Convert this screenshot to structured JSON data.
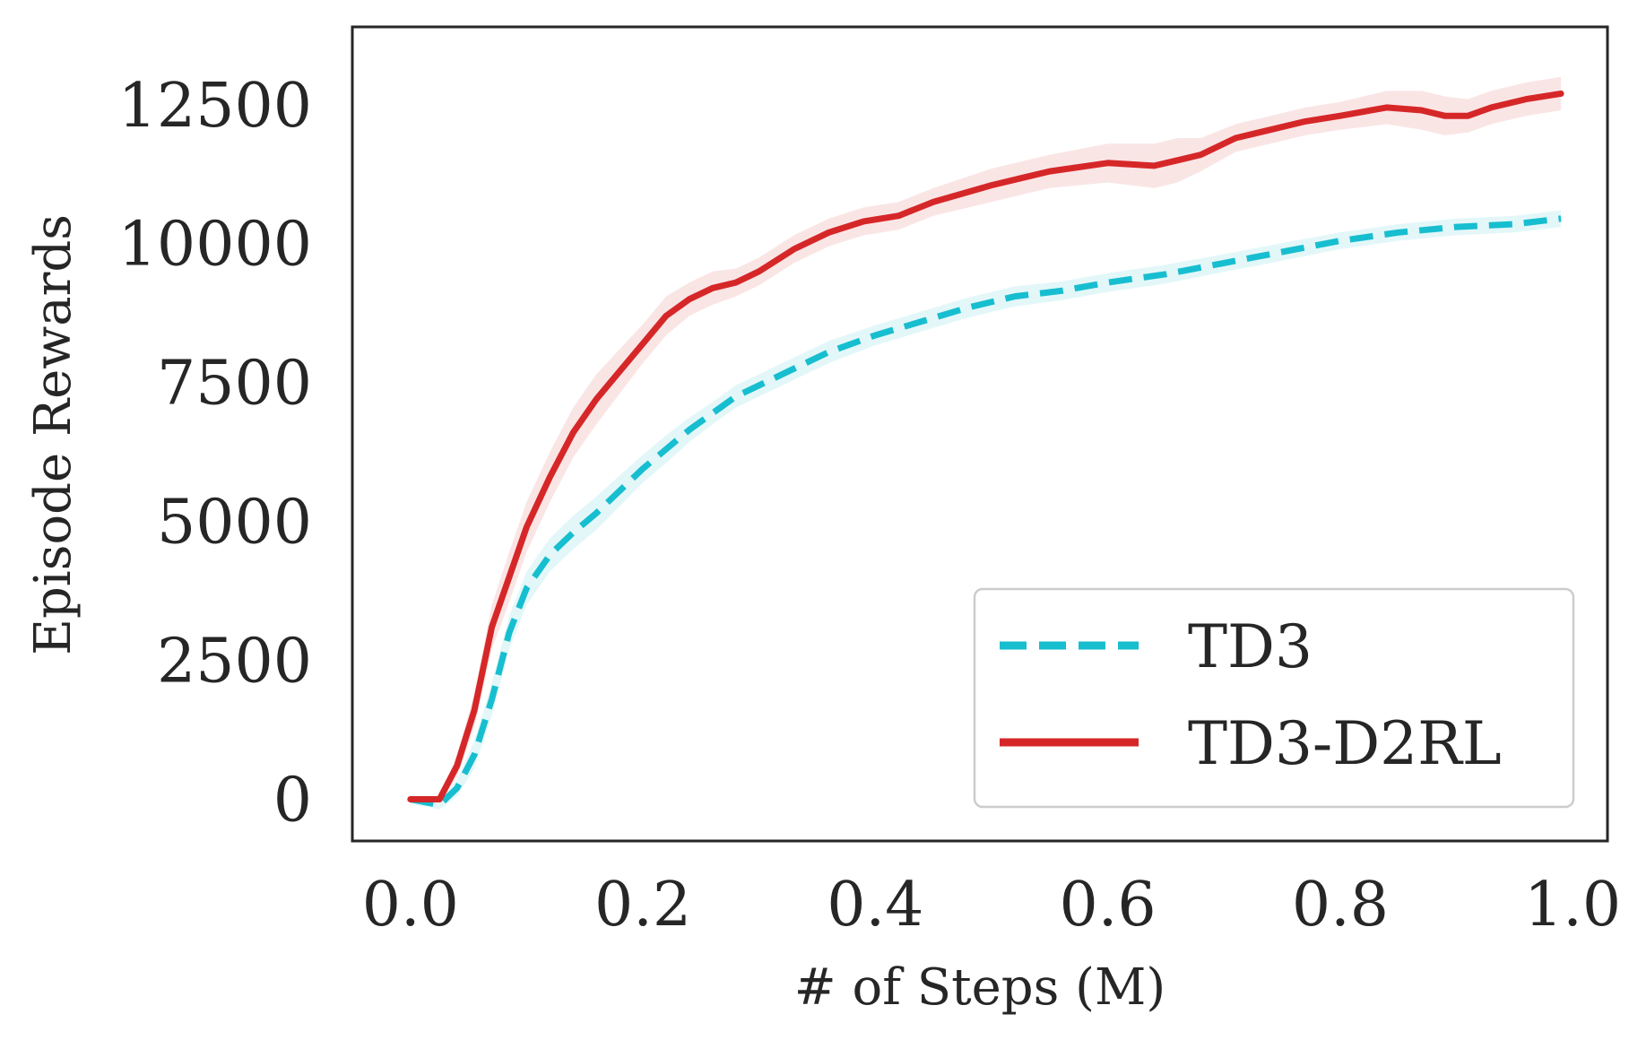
{
  "chart_data": {
    "type": "line",
    "title": "",
    "xlabel": "# of Steps (M)",
    "ylabel": "Episode Rewards",
    "xlim": [
      -0.05,
      1.03
    ],
    "ylim": [
      -750,
      13900
    ],
    "xticks": [
      0.0,
      0.2,
      0.4,
      0.6,
      0.8,
      1.0
    ],
    "xtick_labels": [
      "0.0",
      "0.2",
      "0.4",
      "0.6",
      "0.8",
      "1.0"
    ],
    "yticks": [
      0,
      2500,
      5000,
      7500,
      10000,
      12500
    ],
    "ytick_labels": [
      "0",
      "2500",
      "5000",
      "7500",
      "10000",
      "12500"
    ],
    "grid": false,
    "legend_position": "lower-right",
    "series": [
      {
        "name": "TD3",
        "color": "#17becf",
        "line_style": "dashed",
        "x": [
          0.0,
          0.025,
          0.04,
          0.055,
          0.07,
          0.085,
          0.1,
          0.12,
          0.14,
          0.16,
          0.18,
          0.2,
          0.22,
          0.24,
          0.26,
          0.28,
          0.3,
          0.33,
          0.36,
          0.4,
          0.44,
          0.48,
          0.52,
          0.56,
          0.6,
          0.65,
          0.7,
          0.75,
          0.8,
          0.85,
          0.9,
          0.95,
          0.99
        ],
        "y": [
          0,
          -100,
          200,
          800,
          1800,
          3000,
          3800,
          4400,
          4800,
          5150,
          5550,
          5950,
          6300,
          6650,
          6950,
          7250,
          7450,
          7750,
          8050,
          8350,
          8600,
          8850,
          9050,
          9150,
          9300,
          9450,
          9650,
          9850,
          10050,
          10200,
          10300,
          10350,
          10450
        ],
        "band": [
          80,
          80,
          150,
          250,
          300,
          300,
          300,
          300,
          300,
          300,
          280,
          250,
          250,
          220,
          200,
          200,
          200,
          200,
          200,
          180,
          180,
          180,
          180,
          170,
          170,
          170,
          160,
          160,
          150,
          150,
          150,
          150,
          150
        ]
      },
      {
        "name": "TD3-D2RL",
        "color": "#d62728",
        "line_style": "solid",
        "x": [
          0.0,
          0.025,
          0.04,
          0.055,
          0.07,
          0.085,
          0.1,
          0.12,
          0.14,
          0.16,
          0.18,
          0.2,
          0.22,
          0.24,
          0.26,
          0.28,
          0.3,
          0.33,
          0.36,
          0.39,
          0.42,
          0.45,
          0.5,
          0.55,
          0.6,
          0.64,
          0.66,
          0.68,
          0.71,
          0.74,
          0.77,
          0.8,
          0.84,
          0.87,
          0.89,
          0.91,
          0.93,
          0.96,
          0.99
        ],
        "y": [
          0,
          0,
          600,
          1600,
          3100,
          4000,
          4900,
          5800,
          6600,
          7200,
          7700,
          8200,
          8700,
          9000,
          9200,
          9300,
          9500,
          9900,
          10200,
          10400,
          10500,
          10750,
          11050,
          11300,
          11450,
          11400,
          11500,
          11600,
          11900,
          12050,
          12200,
          12300,
          12450,
          12400,
          12300,
          12300,
          12450,
          12600,
          12700
        ],
        "band": [
          50,
          50,
          200,
          300,
          400,
          450,
          450,
          450,
          450,
          450,
          400,
          350,
          350,
          300,
          300,
          250,
          250,
          250,
          250,
          250,
          250,
          250,
          300,
          300,
          350,
          400,
          400,
          300,
          250,
          250,
          250,
          250,
          300,
          350,
          350,
          300,
          300,
          300,
          300
        ]
      }
    ]
  }
}
